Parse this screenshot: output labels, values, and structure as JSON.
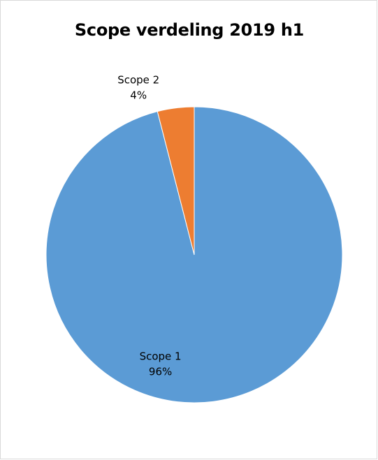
{
  "chart_data": {
    "type": "pie",
    "title": "Scope verdeling 2019 h1",
    "categories": [
      "Scope 1",
      "Scope 2"
    ],
    "values": [
      96,
      4
    ],
    "value_labels": [
      "96%",
      "4%"
    ],
    "colors": [
      "#5b9bd5",
      "#ed7d31"
    ],
    "start_angle_deg": 0,
    "direction": "clockwise",
    "legend": "none"
  }
}
